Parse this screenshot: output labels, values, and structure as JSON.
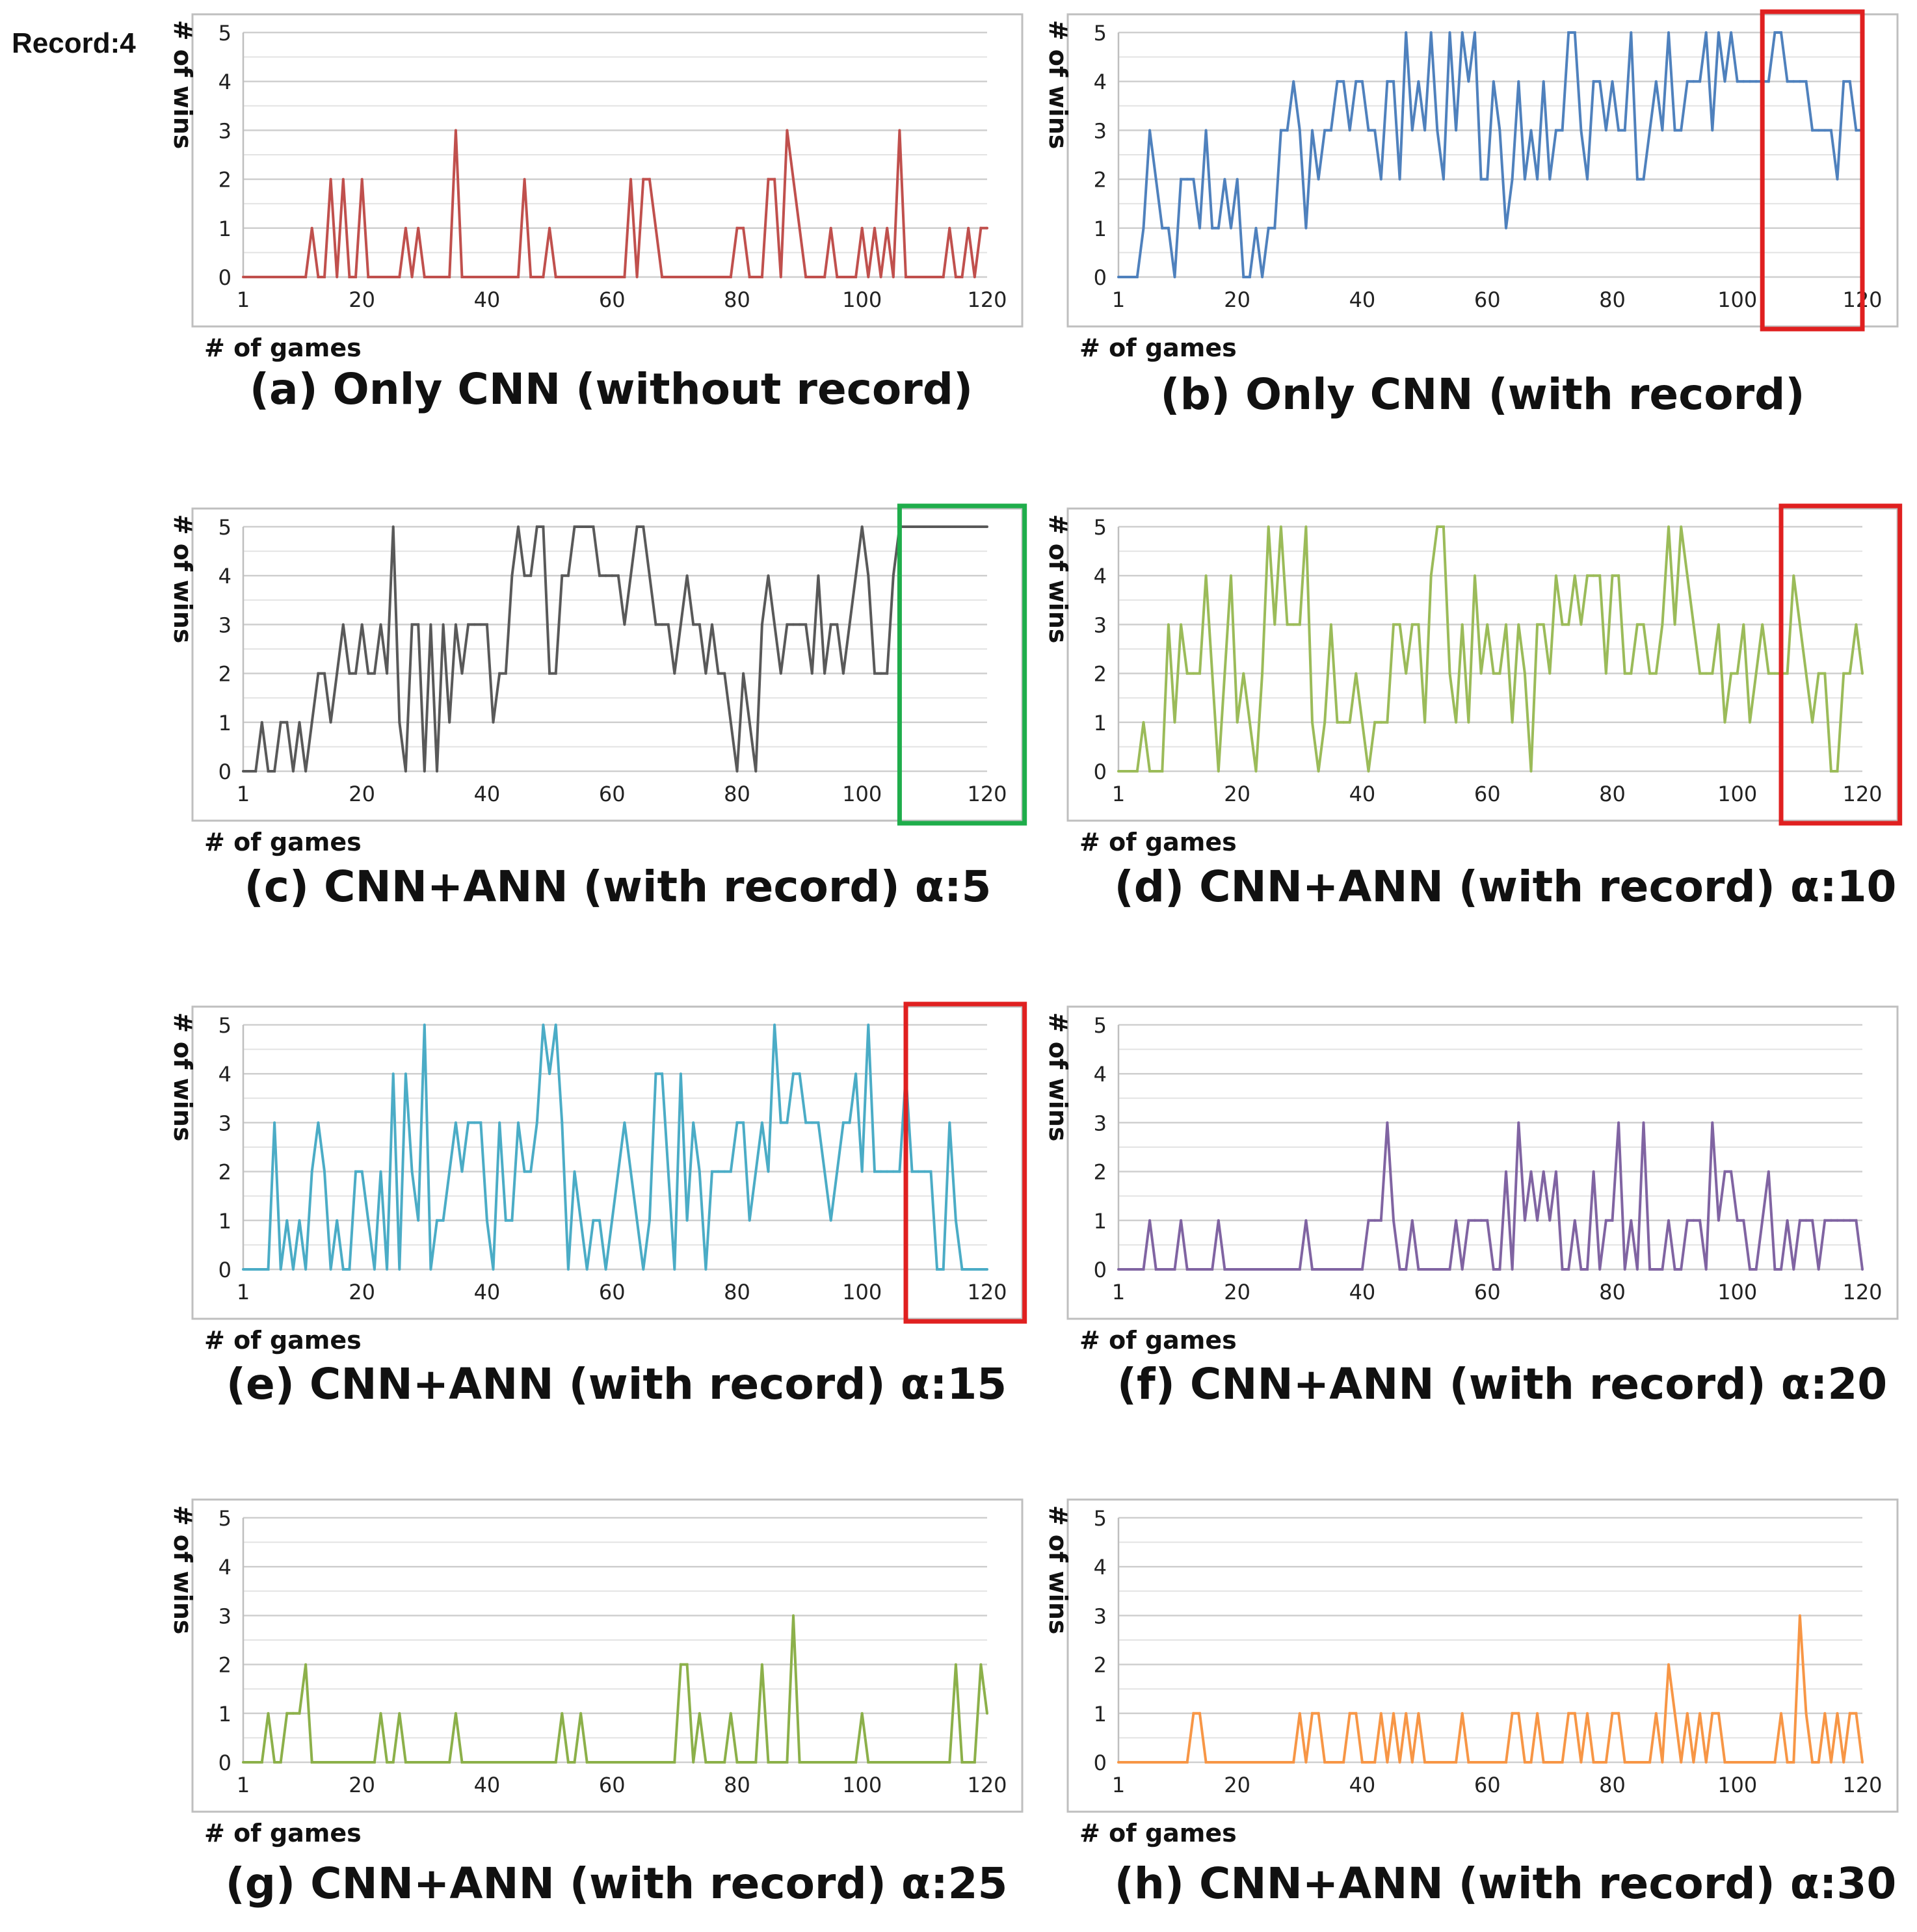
{
  "figure_note": "Record:4",
  "chart_data": [
    {
      "id": "a",
      "type": "line",
      "caption": "(a) Only CNN (without record)",
      "xlabel": "# of games",
      "ylabel": "# of wins",
      "xlim": [
        1,
        120
      ],
      "ylim": [
        0,
        5
      ],
      "xticks": [
        1,
        20,
        40,
        60,
        80,
        100,
        120
      ],
      "yticks": [
        0,
        1,
        2,
        3,
        4,
        5
      ],
      "color": "#c0504d",
      "highlight": null,
      "x_start": 1,
      "values": [
        0,
        0,
        0,
        0,
        0,
        0,
        0,
        0,
        0,
        0,
        0,
        1,
        0,
        0,
        2,
        0,
        2,
        0,
        0,
        2,
        0,
        0,
        0,
        0,
        0,
        0,
        1,
        0,
        1,
        0,
        0,
        0,
        0,
        0,
        3,
        0,
        0,
        0,
        0,
        0,
        0,
        0,
        0,
        0,
        0,
        2,
        0,
        0,
        0,
        1,
        0,
        0,
        0,
        0,
        0,
        0,
        0,
        0,
        0,
        0,
        0,
        0,
        2,
        0,
        2,
        2,
        1,
        0,
        0,
        0,
        0,
        0,
        0,
        0,
        0,
        0,
        0,
        0,
        0,
        1,
        1,
        0,
        0,
        0,
        2,
        2,
        0,
        3,
        2,
        1,
        0,
        0,
        0,
        0,
        1,
        0,
        0,
        0,
        0,
        1,
        0,
        1,
        0,
        1,
        0,
        3,
        0,
        0,
        0,
        0,
        0,
        0,
        0,
        1,
        0,
        0,
        1,
        0,
        1,
        1
      ]
    },
    {
      "id": "b",
      "type": "line",
      "caption": "(b) Only CNN (with record)",
      "xlabel": "# of games",
      "ylabel": "# of wins",
      "xlim": [
        1,
        120
      ],
      "ylim": [
        0,
        5
      ],
      "xticks": [
        1,
        20,
        40,
        60,
        80,
        100,
        120
      ],
      "yticks": [
        0,
        1,
        2,
        3,
        4,
        5
      ],
      "color": "#4f81bd",
      "highlight": {
        "x_from": 104,
        "x_to": 120,
        "color": "#e02020"
      },
      "x_start": 1,
      "values": [
        0,
        0,
        0,
        0,
        1,
        3,
        2,
        1,
        1,
        0,
        2,
        2,
        2,
        1,
        3,
        1,
        1,
        2,
        1,
        2,
        0,
        0,
        1,
        0,
        1,
        1,
        3,
        3,
        4,
        3,
        1,
        3,
        2,
        3,
        3,
        4,
        4,
        3,
        4,
        4,
        3,
        3,
        2,
        4,
        4,
        2,
        5,
        3,
        4,
        3,
        5,
        3,
        2,
        5,
        3,
        5,
        4,
        5,
        2,
        2,
        4,
        3,
        1,
        2,
        4,
        2,
        3,
        2,
        4,
        2,
        3,
        3,
        5,
        5,
        3,
        2,
        4,
        4,
        3,
        4,
        3,
        3,
        5,
        2,
        2,
        3,
        4,
        3,
        5,
        3,
        3,
        4,
        4,
        4,
        5,
        3,
        5,
        4,
        5,
        4,
        4,
        4,
        4,
        4,
        4,
        5,
        5,
        4,
        4,
        4,
        4,
        3,
        3,
        3,
        3,
        2,
        4,
        4,
        3,
        3
      ]
    },
    {
      "id": "c",
      "type": "line",
      "caption": "(c) CNN+ANN (with record) α:5",
      "xlabel": "# of games",
      "ylabel": "# of wins",
      "xlim": [
        1,
        120
      ],
      "ylim": [
        0,
        5
      ],
      "xticks": [
        1,
        20,
        40,
        60,
        80,
        100,
        120
      ],
      "yticks": [
        0,
        1,
        2,
        3,
        4,
        5
      ],
      "color": "#595959",
      "highlight": {
        "x_from": 106,
        "x_to": 126,
        "color": "#1fad4b"
      },
      "x_start": 1,
      "values": [
        0,
        0,
        0,
        1,
        0,
        0,
        1,
        1,
        0,
        1,
        0,
        1,
        2,
        2,
        1,
        2,
        3,
        2,
        2,
        3,
        2,
        2,
        3,
        2,
        5,
        1,
        0,
        3,
        3,
        0,
        3,
        0,
        3,
        1,
        3,
        2,
        3,
        3,
        3,
        3,
        1,
        2,
        2,
        4,
        5,
        4,
        4,
        5,
        5,
        2,
        2,
        4,
        4,
        5,
        5,
        5,
        5,
        4,
        4,
        4,
        4,
        3,
        4,
        5,
        5,
        4,
        3,
        3,
        3,
        2,
        3,
        4,
        3,
        3,
        2,
        3,
        2,
        2,
        1,
        0,
        2,
        1,
        0,
        3,
        4,
        3,
        2,
        3,
        3,
        3,
        3,
        2,
        4,
        2,
        3,
        3,
        2,
        3,
        4,
        5,
        4,
        2,
        2,
        2,
        4,
        5,
        5,
        5,
        5,
        5,
        5,
        5,
        5,
        5,
        5,
        5,
        5,
        5,
        5,
        5
      ]
    },
    {
      "id": "d",
      "type": "line",
      "caption": "(d) CNN+ANN (with record) α:10",
      "xlabel": "# of games",
      "ylabel": "# of wins",
      "xlim": [
        1,
        120
      ],
      "ylim": [
        0,
        5
      ],
      "xticks": [
        1,
        20,
        40,
        60,
        80,
        100,
        120
      ],
      "yticks": [
        0,
        1,
        2,
        3,
        4,
        5
      ],
      "color": "#9bbb59",
      "highlight": {
        "x_from": 107,
        "x_to": 126,
        "color": "#e02020"
      },
      "x_start": 1,
      "values": [
        0,
        0,
        0,
        0,
        1,
        0,
        0,
        0,
        3,
        1,
        3,
        2,
        2,
        2,
        4,
        2,
        0,
        2,
        4,
        1,
        2,
        1,
        0,
        2,
        5,
        3,
        5,
        3,
        3,
        3,
        5,
        1,
        0,
        1,
        3,
        1,
        1,
        1,
        2,
        1,
        0,
        1,
        1,
        1,
        3,
        3,
        2,
        3,
        3,
        1,
        4,
        5,
        5,
        2,
        1,
        3,
        1,
        4,
        2,
        3,
        2,
        2,
        3,
        1,
        3,
        2,
        0,
        3,
        3,
        2,
        4,
        3,
        3,
        4,
        3,
        4,
        4,
        4,
        2,
        4,
        4,
        2,
        2,
        3,
        3,
        2,
        2,
        3,
        5,
        3,
        5,
        4,
        3,
        2,
        2,
        2,
        3,
        1,
        2,
        2,
        3,
        1,
        2,
        3,
        2,
        2,
        2,
        2,
        4,
        3,
        2,
        1,
        2,
        2,
        0,
        0,
        2,
        2,
        3,
        2
      ]
    },
    {
      "id": "e",
      "type": "line",
      "caption": "(e) CNN+ANN (with record) α:15",
      "xlabel": "# of games",
      "ylabel": "# of wins",
      "xlim": [
        1,
        120
      ],
      "ylim": [
        0,
        5
      ],
      "xticks": [
        1,
        20,
        40,
        60,
        80,
        100,
        120
      ],
      "yticks": [
        0,
        1,
        2,
        3,
        4,
        5
      ],
      "color": "#4bacc6",
      "highlight": {
        "x_from": 107,
        "x_to": 126,
        "color": "#e02020"
      },
      "x_start": 1,
      "values": [
        0,
        0,
        0,
        0,
        0,
        3,
        0,
        1,
        0,
        1,
        0,
        2,
        3,
        2,
        0,
        1,
        0,
        0,
        2,
        2,
        1,
        0,
        2,
        0,
        4,
        0,
        4,
        2,
        1,
        5,
        0,
        1,
        1,
        2,
        3,
        2,
        3,
        3,
        3,
        1,
        0,
        3,
        1,
        1,
        3,
        2,
        2,
        3,
        5,
        4,
        5,
        3,
        0,
        2,
        1,
        0,
        1,
        1,
        0,
        1,
        2,
        3,
        2,
        1,
        0,
        1,
        4,
        4,
        2,
        0,
        4,
        1,
        3,
        2,
        0,
        2,
        2,
        2,
        2,
        3,
        3,
        1,
        2,
        3,
        2,
        5,
        3,
        3,
        4,
        4,
        3,
        3,
        3,
        2,
        1,
        2,
        3,
        3,
        4,
        2,
        5,
        2,
        2,
        2,
        2,
        2,
        4,
        2,
        2,
        2,
        2,
        0,
        0,
        3,
        1,
        0,
        0,
        0,
        0,
        0
      ]
    },
    {
      "id": "f",
      "type": "line",
      "caption": "(f) CNN+ANN (with record) α:20",
      "xlabel": "# of games",
      "ylabel": "# of wins",
      "xlim": [
        1,
        120
      ],
      "ylim": [
        0,
        5
      ],
      "xticks": [
        1,
        20,
        40,
        60,
        80,
        100,
        120
      ],
      "yticks": [
        0,
        1,
        2,
        3,
        4,
        5
      ],
      "color": "#8064a2",
      "highlight": null,
      "x_start": 1,
      "values": [
        0,
        0,
        0,
        0,
        0,
        1,
        0,
        0,
        0,
        0,
        1,
        0,
        0,
        0,
        0,
        0,
        1,
        0,
        0,
        0,
        0,
        0,
        0,
        0,
        0,
        0,
        0,
        0,
        0,
        0,
        1,
        0,
        0,
        0,
        0,
        0,
        0,
        0,
        0,
        0,
        1,
        1,
        1,
        3,
        1,
        0,
        0,
        1,
        0,
        0,
        0,
        0,
        0,
        0,
        1,
        0,
        1,
        1,
        1,
        1,
        0,
        0,
        2,
        0,
        3,
        1,
        2,
        1,
        2,
        1,
        2,
        0,
        0,
        1,
        0,
        0,
        2,
        0,
        1,
        1,
        3,
        0,
        1,
        0,
        3,
        0,
        0,
        0,
        1,
        0,
        0,
        1,
        1,
        1,
        0,
        3,
        1,
        2,
        2,
        1,
        1,
        0,
        0,
        1,
        2,
        0,
        0,
        1,
        0,
        1,
        1,
        1,
        0,
        1,
        1,
        1,
        1,
        1,
        1,
        0
      ]
    },
    {
      "id": "g",
      "type": "line",
      "caption": "(g) CNN+ANN (with record) α:25",
      "xlabel": "# of games",
      "ylabel": "# of wins",
      "xlim": [
        1,
        120
      ],
      "ylim": [
        0,
        5
      ],
      "xticks": [
        1,
        20,
        40,
        60,
        80,
        100,
        120
      ],
      "yticks": [
        0,
        1,
        2,
        3,
        4,
        5
      ],
      "color": "#8cb04a",
      "highlight": null,
      "x_start": 1,
      "values": [
        0,
        0,
        0,
        0,
        1,
        0,
        0,
        1,
        1,
        1,
        2,
        0,
        0,
        0,
        0,
        0,
        0,
        0,
        0,
        0,
        0,
        0,
        1,
        0,
        0,
        1,
        0,
        0,
        0,
        0,
        0,
        0,
        0,
        0,
        1,
        0,
        0,
        0,
        0,
        0,
        0,
        0,
        0,
        0,
        0,
        0,
        0,
        0,
        0,
        0,
        0,
        1,
        0,
        0,
        1,
        0,
        0,
        0,
        0,
        0,
        0,
        0,
        0,
        0,
        0,
        0,
        0,
        0,
        0,
        0,
        2,
        2,
        0,
        1,
        0,
        0,
        0,
        0,
        1,
        0,
        0,
        0,
        0,
        2,
        0,
        0,
        0,
        0,
        3,
        0,
        0,
        0,
        0,
        0,
        0,
        0,
        0,
        0,
        0,
        1,
        0,
        0,
        0,
        0,
        0,
        0,
        0,
        0,
        0,
        0,
        0,
        0,
        0,
        0,
        2,
        0,
        0,
        0,
        2,
        1
      ]
    },
    {
      "id": "h",
      "type": "line",
      "caption": "(h) CNN+ANN (with record) α:30",
      "xlabel": "# of games",
      "ylabel": "# of wins",
      "xlim": [
        1,
        120
      ],
      "ylim": [
        0,
        5
      ],
      "xticks": [
        1,
        20,
        40,
        60,
        80,
        100,
        120
      ],
      "yticks": [
        0,
        1,
        2,
        3,
        4,
        5
      ],
      "color": "#f79646",
      "highlight": null,
      "x_start": 1,
      "values": [
        0,
        0,
        0,
        0,
        0,
        0,
        0,
        0,
        0,
        0,
        0,
        0,
        1,
        1,
        0,
        0,
        0,
        0,
        0,
        0,
        0,
        0,
        0,
        0,
        0,
        0,
        0,
        0,
        0,
        1,
        0,
        1,
        1,
        0,
        0,
        0,
        0,
        1,
        1,
        0,
        0,
        0,
        1,
        0,
        1,
        0,
        1,
        0,
        1,
        0,
        0,
        0,
        0,
        0,
        0,
        1,
        0,
        0,
        0,
        0,
        0,
        0,
        0,
        1,
        1,
        0,
        0,
        1,
        0,
        0,
        0,
        0,
        1,
        1,
        0,
        1,
        0,
        0,
        0,
        1,
        1,
        0,
        0,
        0,
        0,
        0,
        1,
        0,
        2,
        1,
        0,
        1,
        0,
        1,
        0,
        1,
        1,
        0,
        0,
        0,
        0,
        0,
        0,
        0,
        0,
        0,
        1,
        0,
        0,
        3,
        1,
        0,
        0,
        1,
        0,
        1,
        0,
        1,
        1,
        0
      ]
    }
  ]
}
